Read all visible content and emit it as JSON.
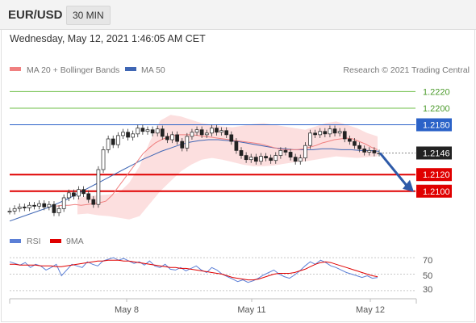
{
  "header": {
    "pair": "EUR/USD",
    "timeframe": "30 MIN"
  },
  "datetime": "Wednesday, May 12, 2021 1:46:05 AM CET",
  "colors": {
    "ma20": "#f08080",
    "bands": "#fbd9d9",
    "ma50": "#3f66b4",
    "support": "#e00000",
    "resistance_green": "#6fbf4a",
    "resistance_blue": "#2b62c8",
    "rsi": "#5b7fd6",
    "rsi_ma": "#e00000",
    "arrow": "#2e5aa8"
  },
  "chart_data": [
    {
      "type": "line",
      "legend": [
        {
          "name": "MA 20 + Bollinger Bands"
        },
        {
          "name": "MA 50"
        }
      ],
      "credit": "Research © 2021 Trading Central",
      "x_ticks": [
        "May 8",
        "May 11",
        "May 12"
      ],
      "ylim": [
        1.2055,
        1.2235
      ],
      "levels": [
        {
          "value": 1.222,
          "label": "1.2220",
          "role": "resistance",
          "style": "green"
        },
        {
          "value": 1.22,
          "label": "1.2200",
          "role": "resistance",
          "style": "green"
        },
        {
          "value": 1.218,
          "label": "1.2180",
          "role": "resistance",
          "style": "blue"
        },
        {
          "value": 1.2146,
          "label": "1.2146",
          "role": "last-price",
          "style": "dark"
        },
        {
          "value": 1.212,
          "label": "1.2120",
          "role": "support",
          "style": "red"
        },
        {
          "value": 1.21,
          "label": "1.2100",
          "role": "support",
          "style": "red"
        }
      ],
      "price_series": [
        1.2076,
        1.2079,
        1.2081,
        1.208,
        1.2083,
        1.2082,
        1.2085,
        1.2081,
        1.2084,
        1.2074,
        1.2079,
        1.2092,
        1.2098,
        1.2094,
        1.2102,
        1.2097,
        1.209,
        1.2084,
        1.2126,
        1.215,
        1.2163,
        1.2156,
        1.2167,
        1.2171,
        1.2165,
        1.2169,
        1.2176,
        1.2172,
        1.2174,
        1.217,
        1.2175,
        1.2166,
        1.2162,
        1.2168,
        1.216,
        1.2152,
        1.2166,
        1.2171,
        1.2174,
        1.2168,
        1.217,
        1.2176,
        1.2171,
        1.2173,
        1.2168,
        1.216,
        1.2149,
        1.2143,
        1.2138,
        1.2141,
        1.2136,
        1.2142,
        1.214,
        1.2137,
        1.2143,
        1.2149,
        1.2147,
        1.2141,
        1.2136,
        1.214,
        1.2155,
        1.217,
        1.2168,
        1.2172,
        1.2169,
        1.2175,
        1.217,
        1.2172,
        1.2163,
        1.216,
        1.2155,
        1.2151,
        1.2147,
        1.2149,
        1.2146,
        1.2146
      ],
      "ma20_series": [
        1.2082,
        1.2083,
        1.2083,
        1.2084,
        1.2083,
        1.2084,
        1.2085,
        1.2086,
        1.2088,
        1.2095,
        1.2105,
        1.2115,
        1.2125,
        1.2135,
        1.2145,
        1.2152,
        1.2158,
        1.2162,
        1.2165,
        1.2167,
        1.2168,
        1.2168,
        1.2168,
        1.2167,
        1.2166,
        1.2165,
        1.2164,
        1.2163,
        1.2162,
        1.2161,
        1.216,
        1.2159,
        1.2158,
        1.2157,
        1.2155,
        1.2153,
        1.2151,
        1.215,
        1.215,
        1.215,
        1.2151,
        1.2153,
        1.2155,
        1.2158,
        1.216,
        1.2162,
        1.2163,
        1.2164,
        1.2163,
        1.216,
        1.2157,
        1.2153,
        1.215
      ],
      "ma50_series": [
        1.2064,
        1.2068,
        1.2072,
        1.2076,
        1.208,
        1.2085,
        1.209,
        1.2096,
        1.2102,
        1.2108,
        1.2114,
        1.212,
        1.2126,
        1.2132,
        1.2138,
        1.2143,
        1.2148,
        1.2152,
        1.2156,
        1.2159,
        1.2161,
        1.2162,
        1.2162,
        1.2161,
        1.216,
        1.2158,
        1.2156,
        1.2154,
        1.2152,
        1.2151,
        1.215,
        1.215,
        1.215,
        1.2151,
        1.2151,
        1.215,
        1.215,
        1.2149,
        1.2149,
        1.2148
      ],
      "bb_upper_series": [
        1.2092,
        1.2094,
        1.2095,
        1.2096,
        1.2098,
        1.211,
        1.213,
        1.216,
        1.2185,
        1.2192,
        1.219,
        1.2186,
        1.2182,
        1.218,
        1.2178,
        1.2177,
        1.2179,
        1.2181,
        1.2182,
        1.218,
        1.2178,
        1.2176,
        1.2174,
        1.2178,
        1.2182,
        1.2184,
        1.218,
        1.2176,
        1.217,
        1.2166
      ],
      "bb_lower_series": [
        1.2072,
        1.2073,
        1.2071,
        1.207,
        1.2068,
        1.2066,
        1.207,
        1.2085,
        1.21,
        1.2112,
        1.2124,
        1.2132,
        1.2138,
        1.214,
        1.2138,
        1.2135,
        1.2132,
        1.213,
        1.213,
        1.2131,
        1.2133,
        1.2135,
        1.2136,
        1.2138,
        1.214,
        1.2142,
        1.2141,
        1.214,
        1.2141,
        1.2142
      ],
      "forecast_arrow": {
        "from": 1.2146,
        "to": 1.21
      }
    },
    {
      "type": "line",
      "legend": [
        {
          "name": "RSI"
        },
        {
          "name": "9MA"
        }
      ],
      "ylim": [
        25,
        75
      ],
      "y_ticks": [
        70,
        50,
        30
      ],
      "rsi_series": [
        65,
        63,
        61,
        64,
        58,
        62,
        60,
        55,
        58,
        62,
        48,
        55,
        62,
        60,
        58,
        65,
        62,
        60,
        66,
        68,
        70,
        67,
        69,
        66,
        63,
        65,
        61,
        66,
        60,
        58,
        62,
        56,
        55,
        58,
        54,
        57,
        60,
        55,
        52,
        58,
        55,
        50,
        47,
        44,
        41,
        43,
        40,
        42,
        45,
        49,
        52,
        55,
        50,
        47,
        45,
        49,
        54,
        60,
        65,
        62,
        67,
        64,
        60,
        58,
        55,
        52,
        50,
        48,
        46,
        48,
        45,
        46
      ],
      "rsi_ma_series": [
        62,
        62,
        61,
        61,
        61,
        61,
        60,
        60,
        60,
        59,
        59,
        60,
        61,
        62,
        63,
        64,
        65,
        66,
        66,
        67,
        67,
        67,
        66,
        66,
        65,
        64,
        63,
        62,
        61,
        60,
        59,
        58,
        58,
        57,
        57,
        56,
        55,
        54,
        53,
        52,
        51,
        50,
        48,
        46,
        45,
        44,
        43,
        43,
        44,
        46,
        48,
        50,
        51,
        51,
        51,
        52,
        54,
        56,
        59,
        62,
        64,
        65,
        64,
        62,
        60,
        58,
        56,
        54,
        52,
        50,
        48,
        47
      ]
    }
  ]
}
